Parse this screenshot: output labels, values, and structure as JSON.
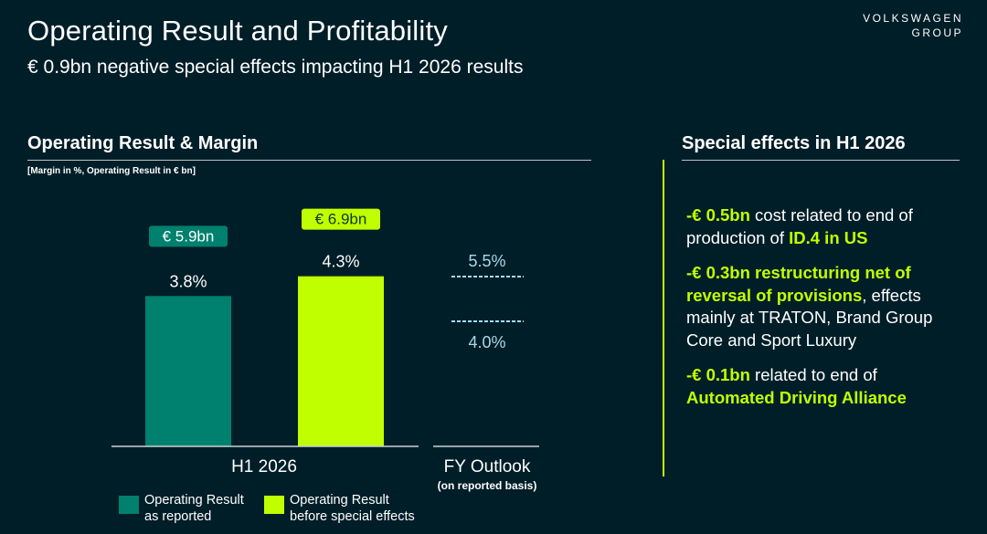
{
  "header": {
    "title": "Operating Result and Profitability",
    "subtitle": "€ 0.9bn negative special effects impacting H1 2026 results",
    "logo_line1": "VOLKSWAGEN",
    "logo_line2": "GROUP"
  },
  "left": {
    "section_title": "Operating Result & Margin",
    "note": "[Margin in %, Operating Result in € bn]"
  },
  "legend": {
    "item1_line1": "Operating Result",
    "item1_line2": "as reported",
    "item2_line1": "Operating Result",
    "item2_line2": "before special effects"
  },
  "right": {
    "section_title": "Special effects in H1 2026",
    "effects": [
      {
        "hl": "-€ 0.5bn",
        "text1": " cost related to end of production of ",
        "hl2": "ID.4 in US",
        "text2": ""
      },
      {
        "hl": "-€ 0.3bn restructuring net of reversal of provisions",
        "text1": ", effects mainly at TRATON, Brand Group Core and Sport Luxury",
        "hl2": "",
        "text2": ""
      },
      {
        "hl": "-€ 0.1bn",
        "text1": " related to end of ",
        "hl2": "Automated Driving Alliance",
        "text2": ""
      }
    ]
  },
  "colors": {
    "background": "#001e28",
    "teal": "#00806e",
    "lime": "#c0ff00",
    "dash": "#9fe0ff"
  },
  "chart_data": {
    "type": "bar",
    "categories": [
      "H1 2026",
      "FY Outlook"
    ],
    "category_sublabels": [
      "",
      "(on reported basis)"
    ],
    "series": [
      {
        "name": "Operating Result as reported",
        "margin_pct": 3.8,
        "margin_label": "3.8%",
        "result_label": "€ 5.9bn",
        "result_bn": 5.9
      },
      {
        "name": "Operating Result before special effects",
        "margin_pct": 4.3,
        "margin_label": "4.3%",
        "result_label": "€ 6.9bn",
        "result_bn": 6.9
      }
    ],
    "outlook": {
      "high_pct": 5.5,
      "high_label": "5.5%",
      "low_pct": 4.0,
      "low_label": "4.0%"
    },
    "ylim": [
      0,
      6
    ]
  }
}
